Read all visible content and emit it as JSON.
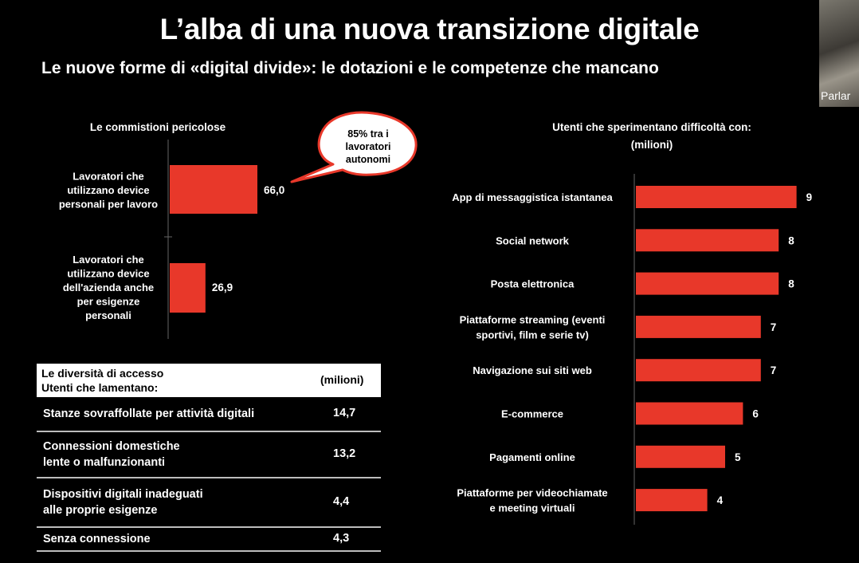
{
  "title": "L’alba di una nuova transizione digitale",
  "subtitle": "Le nuove forme di «digital divide»: le dotazioni e le competenze che mancano",
  "video_thumbnail": {
    "label": "Parlar"
  },
  "chart_data": [
    {
      "type": "bar",
      "orientation": "horizontal",
      "title": "Le commistioni pericolose",
      "categories": [
        "Lavoratori che utilizzano device personali per lavoro",
        "Lavoratori che utilizzano device dell'azienda anche per esigenze personali"
      ],
      "category_lines": [
        [
          "Lavoratori che",
          "utilizzano device",
          "personali per lavoro"
        ],
        [
          "Lavoratori che",
          "utilizzano device",
          "dell'azienda anche",
          "per esigenze",
          "personali"
        ]
      ],
      "values": [
        66.0,
        26.9
      ],
      "value_labels": [
        "66,0",
        "26,9"
      ],
      "annotation": {
        "lines": [
          "85% tra i",
          "lavoratori",
          "autonomi"
        ]
      },
      "bar_color": "#e8382a"
    },
    {
      "type": "bar",
      "orientation": "horizontal",
      "title": "Utenti che sperimentano difficoltà con:",
      "unit": "(milioni)",
      "categories": [
        "App di messaggistica istantanea",
        "Social network",
        "Posta elettronica",
        "Piattaforme streaming (eventi sportivi, film e serie tv)",
        "Navigazione sui siti web",
        "E-commerce",
        "Pagamenti online",
        "Piattaforme per videochiamate e meeting virtuali"
      ],
      "category_lines": [
        [
          "App di messaggistica istantanea"
        ],
        [
          "Social network"
        ],
        [
          "Posta elettronica"
        ],
        [
          "Piattaforme streaming (eventi",
          "sportivi, film e serie tv)"
        ],
        [
          "Navigazione sui siti web"
        ],
        [
          "E-commerce"
        ],
        [
          "Pagamenti online"
        ],
        [
          "Piattaforme per videochiamate",
          "e meeting virtuali"
        ]
      ],
      "values": [
        9,
        8,
        8,
        7,
        7,
        6,
        5,
        4
      ],
      "bar_color": "#e8382a"
    },
    {
      "type": "table",
      "header": [
        "Le diversità di accesso",
        "Utenti che lamentano:"
      ],
      "unit_header": "(milioni)",
      "rows": [
        {
          "label_lines": [
            "Stanze sovraffollate per attività digitali"
          ],
          "value": "14,7"
        },
        {
          "label_lines": [
            "Connessioni domestiche",
            "lente o malfunzionanti"
          ],
          "value": "13,2"
        },
        {
          "label_lines": [
            "Dispositivi digitali inadeguati",
            "alle proprie esigenze"
          ],
          "value": "4,4"
        },
        {
          "label_lines": [
            "Senza connessione"
          ],
          "value": "4,3"
        }
      ]
    }
  ]
}
